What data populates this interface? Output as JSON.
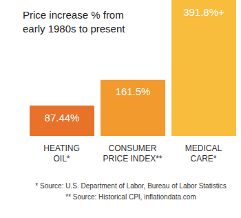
{
  "chart_data": {
    "type": "bar",
    "title": "Price increase % from early 1980s to present",
    "categories": [
      "HEATING OIL*",
      "CONSUMER PRICE INDEX**",
      "MEDICAL CARE*"
    ],
    "values": [
      87.44,
      161.5,
      391.8
    ],
    "value_labels": [
      "87.44%",
      "161.5%",
      "391.8%+"
    ],
    "colors": [
      "#e8722a",
      "#f29a2e",
      "#f9bd3d"
    ],
    "data_labels": true,
    "tick_labels": "x",
    "annotations": [
      "* Source: U.S. Department of Labor, Bureau of Labor Statistics",
      "** Source: Historical CPI, inflationdata.com"
    ]
  }
}
